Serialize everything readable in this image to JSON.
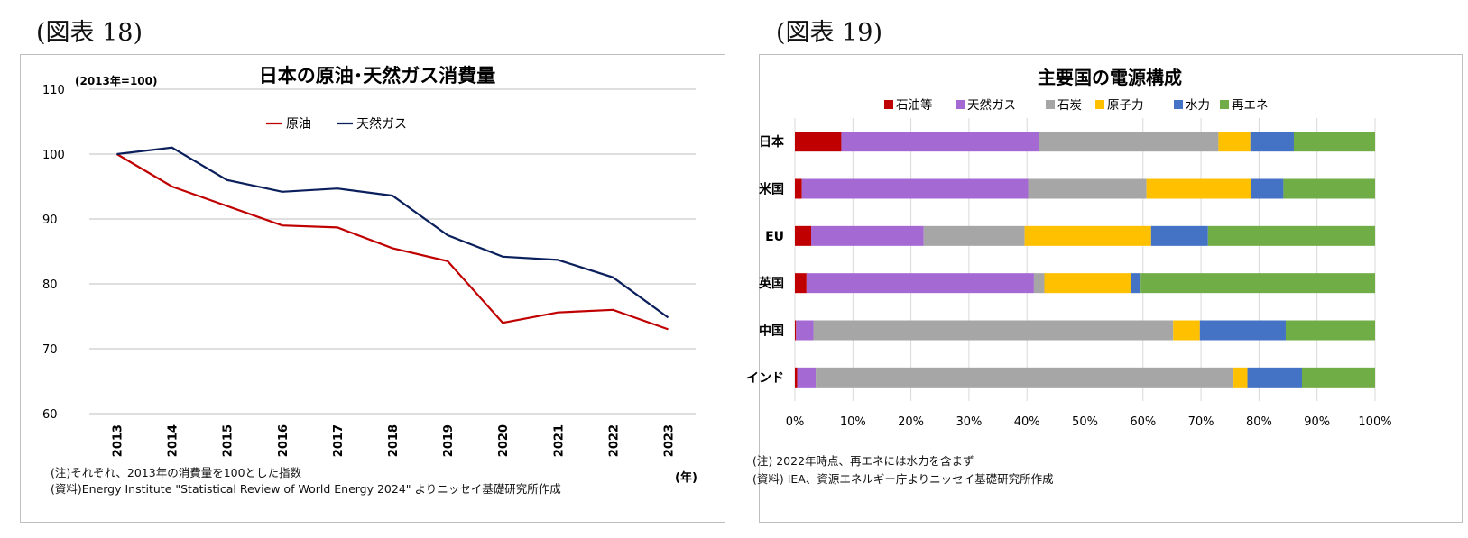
{
  "figure_labels": {
    "left": "(図表 18)",
    "right": "(図表 19)"
  },
  "colors": {
    "crude": "#c00000",
    "gas_line": "#0a1f5c",
    "oil_etc": "#c00000",
    "natural_gas": "#a569d4",
    "coal": "#a6a6a6",
    "nuclear": "#ffc000",
    "hydro": "#4472c4",
    "renewable": "#70ad47",
    "grid": "#bfbfbf"
  },
  "chart_data": [
    {
      "type": "line",
      "title": "日本の原油･天然ガス消費量",
      "subtitle": "(2013年=100)",
      "xlabel": "(年)",
      "ylabel": "",
      "x": [
        "2013",
        "2014",
        "2015",
        "2016",
        "2017",
        "2018",
        "2019",
        "2020",
        "2021",
        "2022",
        "2023"
      ],
      "ylim": [
        60,
        110
      ],
      "yticks": [
        60,
        70,
        80,
        90,
        100,
        110
      ],
      "grid": true,
      "legend_position": "top-center",
      "series": [
        {
          "name": "原油",
          "values": [
            100,
            95,
            92,
            89,
            88.7,
            85.5,
            83.5,
            74,
            75.6,
            76,
            73
          ]
        },
        {
          "name": "天然ガス",
          "values": [
            100,
            101,
            96,
            94.2,
            94.7,
            93.6,
            87.5,
            84.2,
            83.7,
            81,
            74.8
          ]
        }
      ],
      "notes": [
        "(注)それぞれ、2013年の消費量を100とした指数",
        "(資料)Energy Institute \"Statistical Review of World Energy 2024\" よりニッセイ基礎研究所作成"
      ]
    },
    {
      "type": "bar",
      "orientation": "horizontal",
      "stacked": true,
      "title": "主要国の電源構成",
      "categories": [
        "日本",
        "米国",
        "EU",
        "英国",
        "中国",
        "インド"
      ],
      "xlim": [
        0,
        100
      ],
      "xticks": [
        "0%",
        "10%",
        "20%",
        "30%",
        "40%",
        "50%",
        "60%",
        "70%",
        "80%",
        "90%",
        "100%"
      ],
      "grid": true,
      "legend_position": "top",
      "series": [
        {
          "name": "石油等",
          "values": [
            8,
            1.2,
            2.8,
            2,
            0.2,
            0.4
          ]
        },
        {
          "name": "天然ガス",
          "values": [
            34,
            39,
            19.4,
            39.2,
            3,
            3.2
          ]
        },
        {
          "name": "石炭",
          "values": [
            31,
            20.4,
            17.4,
            1.8,
            62,
            72
          ]
        },
        {
          "name": "原子力",
          "values": [
            5.5,
            18,
            21.8,
            15,
            4.6,
            2.4
          ]
        },
        {
          "name": "水力",
          "values": [
            7.5,
            5.6,
            9.8,
            1.6,
            14.8,
            9.4
          ]
        },
        {
          "name": "再エネ",
          "values": [
            14,
            15.8,
            28.8,
            40.4,
            15.4,
            12.6
          ]
        }
      ],
      "notes": [
        "(注) 2022年時点、再エネには水力を含まず",
        "(資料) IEA、資源エネルギー庁よりニッセイ基礎研究所作成"
      ]
    }
  ]
}
